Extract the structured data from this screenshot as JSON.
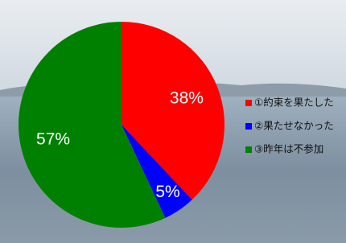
{
  "chart_data": {
    "type": "pie",
    "categories": [
      "①約束を果たした",
      "②果たせなかった",
      "③昨年は不参加"
    ],
    "values": [
      38,
      5,
      57
    ],
    "value_labels": [
      "38%",
      "5%",
      "57%"
    ],
    "colors": [
      "#ff0000",
      "#0000ff",
      "#008000"
    ],
    "legend": "right"
  }
}
